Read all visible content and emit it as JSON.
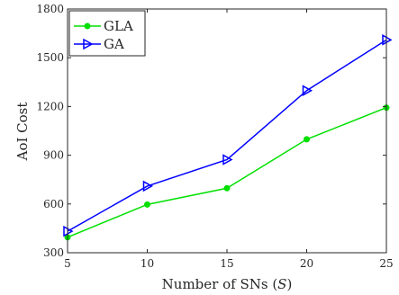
{
  "chart_data": {
    "type": "line",
    "x": [
      5,
      10,
      15,
      20,
      25
    ],
    "series": [
      {
        "name": "GLA",
        "values": [
          395,
          597,
          697,
          998,
          1193
        ],
        "color": "#00e000",
        "marker": "circle"
      },
      {
        "name": "GA",
        "values": [
          432,
          710,
          873,
          1298,
          1610
        ],
        "color": "#0000ff",
        "marker": "triangle-right"
      }
    ],
    "xlabel_text": "Number of SNs (",
    "xlabel_var": "S",
    "xlabel_close": ")",
    "ylabel": "AoI Cost",
    "xlim": [
      5,
      25
    ],
    "ylim": [
      300,
      1800
    ],
    "xticks": [
      5,
      10,
      15,
      20,
      25
    ],
    "yticks": [
      300,
      600,
      900,
      1200,
      1500,
      1800
    ],
    "grid": false,
    "legend_position": "top-left"
  }
}
